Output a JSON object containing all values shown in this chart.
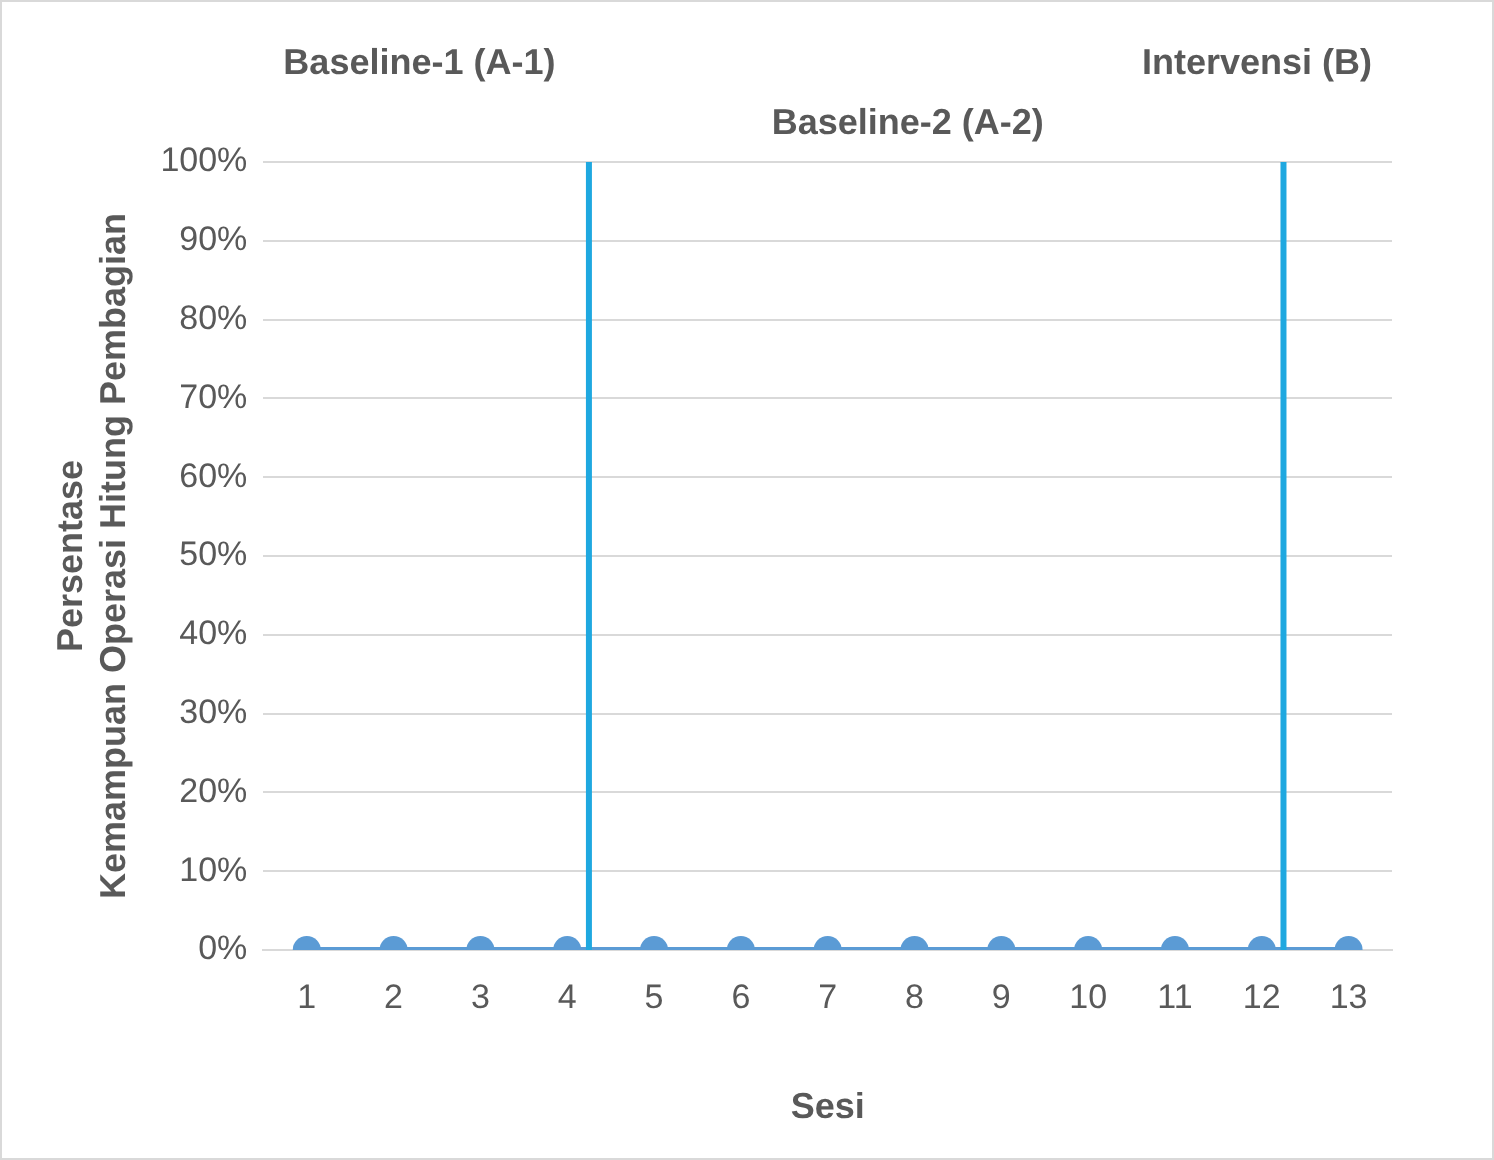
{
  "chart_data": {
    "type": "line",
    "xlabel": "Sesi",
    "ylabel": "Persentase\nKemampuan Operasi Hitung Pembagian",
    "annotations": [
      "Baseline-1 (A-1)",
      "Intervensi (B)",
      "Baseline-2 (A-2)"
    ],
    "x": [
      1,
      2,
      3,
      4,
      5,
      6,
      7,
      8,
      9,
      10,
      11,
      12,
      13
    ],
    "xlim": [
      0.5,
      13.5
    ],
    "xticks": [
      1,
      2,
      3,
      4,
      5,
      6,
      7,
      8,
      9,
      10,
      11,
      12,
      13
    ],
    "series": [
      {
        "color": "#5b9bd5",
        "values": [
          0,
          0,
          0,
          0,
          0,
          0,
          0,
          0,
          0,
          0,
          0,
          0,
          0
        ]
      }
    ],
    "ylim": [
      0,
      100
    ],
    "yticks": [
      {
        "value": 0,
        "label": "0%"
      },
      {
        "value": 10,
        "label": "10%"
      },
      {
        "value": 20,
        "label": "20%"
      },
      {
        "value": 30,
        "label": "30%"
      },
      {
        "value": 40,
        "label": "40%"
      },
      {
        "value": 50,
        "label": "50%"
      },
      {
        "value": 60,
        "label": "60%"
      },
      {
        "value": 70,
        "label": "70%"
      },
      {
        "value": 80,
        "label": "80%"
      },
      {
        "value": 90,
        "label": "90%"
      },
      {
        "value": 100,
        "label": "100%"
      }
    ],
    "ref_lines": [
      {
        "axis": "x",
        "value": 4.25,
        "color": "#1fa8e0"
      },
      {
        "axis": "x",
        "value": 12.25,
        "color": "#1fa8e0"
      }
    ],
    "grid": "y",
    "legend": false,
    "marker": "circle",
    "line_style": "solid"
  }
}
